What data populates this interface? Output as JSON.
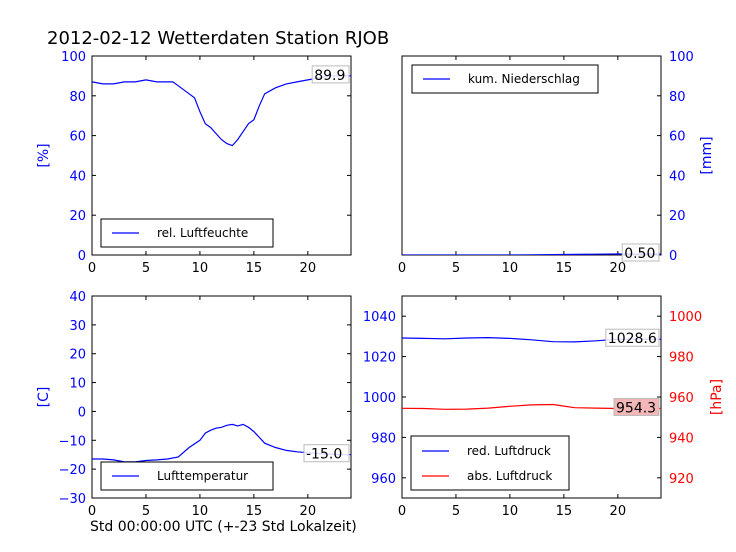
{
  "figure": {
    "title": "2012-02-12 Wetterdaten Station RJOB",
    "xlabel": "Std 00:00:00 UTC (+-23 Std Lokalzeit)"
  },
  "colors": {
    "blue": "#0000ff",
    "red": "#ff0000",
    "black": "#000000",
    "annot_bg": "#f4b7b7"
  },
  "chart_data": [
    {
      "type": "line",
      "id": "humidity",
      "ylabel": "[%]",
      "xlim": [
        0,
        24
      ],
      "ylim": [
        0,
        100
      ],
      "xticks": [
        0,
        5,
        10,
        15,
        20
      ],
      "yticks": [
        0,
        20,
        40,
        60,
        80,
        100
      ],
      "legend": "bottom-left",
      "last_value_label": "89.9",
      "series": [
        {
          "name": "rel. Luftfeuchte",
          "color": "blue",
          "x": [
            0,
            1,
            2,
            3,
            4,
            5,
            6,
            7,
            7.5,
            8,
            8.5,
            9,
            9.5,
            10,
            10.5,
            11,
            11.5,
            12,
            12.5,
            13,
            13.5,
            14,
            14.5,
            15,
            15.5,
            16,
            17,
            18,
            19,
            20,
            21,
            22,
            23,
            24
          ],
          "y": [
            87,
            86,
            86,
            87,
            87,
            88,
            87,
            87,
            87,
            85,
            83,
            81,
            79,
            72,
            66,
            64,
            61,
            58,
            56,
            55,
            58,
            62,
            66,
            68,
            75,
            81,
            84,
            86,
            87,
            88,
            89,
            90,
            90,
            90
          ]
        }
      ]
    },
    {
      "type": "line",
      "id": "precipitation",
      "ylabel": "[mm]",
      "xlim": [
        0,
        24
      ],
      "ylim": [
        0,
        100
      ],
      "xticks": [
        0,
        5,
        10,
        15,
        20
      ],
      "yticks": [
        0,
        20,
        40,
        60,
        80,
        100
      ],
      "legend": "top-left",
      "last_value_label": "0.50",
      "series": [
        {
          "name": "kum. Niederschlag",
          "color": "blue",
          "x": [
            0,
            10,
            12,
            14,
            16,
            18,
            20,
            22,
            24
          ],
          "y": [
            0,
            0,
            0.1,
            0.2,
            0.3,
            0.4,
            0.5,
            0.5,
            0.5
          ]
        }
      ]
    },
    {
      "type": "line",
      "id": "temperature",
      "ylabel": "[C]",
      "xlim": [
        0,
        24
      ],
      "ylim": [
        -30,
        40
      ],
      "xticks": [
        0,
        5,
        10,
        15,
        20
      ],
      "yticks": [
        -30,
        -20,
        -10,
        0,
        10,
        20,
        30,
        40
      ],
      "legend": "bottom-left",
      "last_value_label": "-15.0",
      "series": [
        {
          "name": "Lufttemperatur",
          "color": "blue",
          "x": [
            0,
            1,
            2,
            3,
            4,
            5,
            6,
            7,
            8,
            9,
            10,
            10.5,
            11,
            11.5,
            12,
            12.5,
            13,
            13.5,
            14,
            14.5,
            15,
            15.5,
            16,
            17,
            18,
            19,
            20,
            21,
            22,
            23,
            24
          ],
          "y": [
            -16.5,
            -16.5,
            -16.8,
            -17.5,
            -17.5,
            -17,
            -16.8,
            -16.5,
            -15.8,
            -12.5,
            -10,
            -7.5,
            -6.5,
            -5.8,
            -5.5,
            -4.8,
            -4.5,
            -5,
            -4.5,
            -5.5,
            -7,
            -9,
            -11,
            -12.5,
            -13.5,
            -14,
            -14.3,
            -14.6,
            -14.8,
            -15,
            -15
          ]
        }
      ]
    },
    {
      "type": "line",
      "id": "pressure",
      "ylabel_right": "[hPa]",
      "xlim": [
        0,
        24
      ],
      "ylim": [
        950,
        1050
      ],
      "ylim_right": [
        910,
        1010
      ],
      "xticks": [
        0,
        5,
        10,
        15,
        20
      ],
      "yticks": [
        960,
        980,
        1000,
        1020,
        1040
      ],
      "yticks_right": [
        920,
        940,
        960,
        980,
        1000
      ],
      "legend": "bottom-left",
      "last_value_label": "1028.6",
      "last_value_label_right": "954.3",
      "series": [
        {
          "name": "red. Luftdruck",
          "color": "blue",
          "axis": "left",
          "x": [
            0,
            2,
            4,
            6,
            8,
            10,
            12,
            14,
            16,
            18,
            20,
            22,
            24
          ],
          "y": [
            1029.2,
            1029,
            1028.8,
            1029.2,
            1029.4,
            1029,
            1028.3,
            1027.4,
            1027.3,
            1027.8,
            1028.6,
            1028.6,
            1028.6
          ]
        },
        {
          "name": "abs. Luftdruck",
          "color": "red",
          "axis": "right",
          "x": [
            0,
            2,
            4,
            6,
            8,
            10,
            12,
            14,
            15,
            16,
            18,
            20,
            22,
            24
          ],
          "y": [
            954.4,
            954.3,
            953.9,
            954.0,
            954.5,
            955.4,
            956.1,
            956.3,
            955.5,
            954.7,
            954.5,
            954.3,
            954.3,
            954.3
          ]
        }
      ]
    }
  ]
}
